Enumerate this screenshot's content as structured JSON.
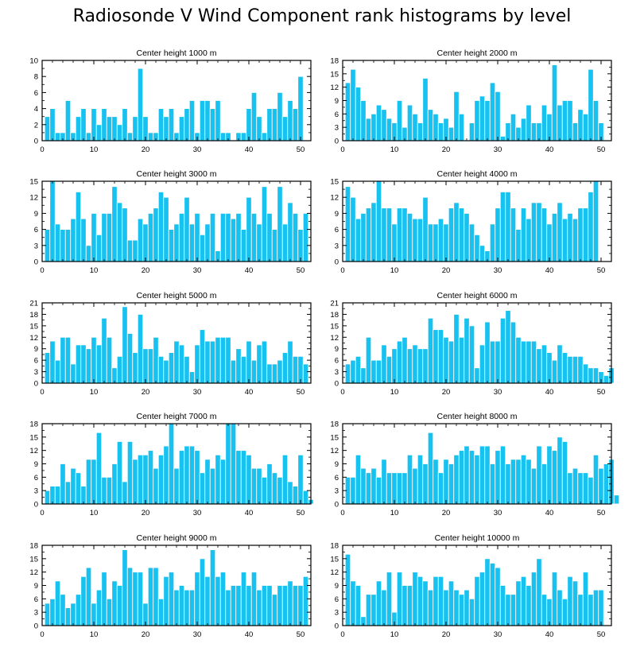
{
  "figure_title": "Radiosonde V Wind Component rank histograms by level",
  "colors": {
    "bar": "#18c2f0",
    "bar_edge": "#ffffff",
    "axis": "#000000"
  },
  "chart_data": [
    {
      "type": "bar",
      "title": "Center height 1000 m",
      "xlabel": "",
      "ylabel": "",
      "xlim": [
        0,
        52
      ],
      "ylim": [
        0,
        10
      ],
      "yticks": [
        0,
        2,
        4,
        6,
        8,
        10
      ],
      "xticks": [
        0,
        10,
        20,
        30,
        40,
        50
      ],
      "grid": false,
      "values": [
        3,
        4,
        1,
        1,
        5,
        1,
        3,
        4,
        1,
        4,
        2,
        4,
        3,
        3,
        2,
        4,
        1,
        3,
        9,
        3,
        1,
        1,
        4,
        3,
        4,
        1,
        3,
        4,
        5,
        1,
        5,
        5,
        4,
        5,
        1,
        1,
        0,
        1,
        1,
        4,
        6,
        3,
        1,
        4,
        4,
        6,
        3,
        5,
        4,
        8
      ]
    },
    {
      "type": "bar",
      "title": "Center height 2000 m",
      "xlabel": "",
      "ylabel": "",
      "xlim": [
        0,
        52
      ],
      "ylim": [
        0,
        18
      ],
      "yticks": [
        0,
        3,
        6,
        9,
        12,
        15,
        18
      ],
      "xticks": [
        0,
        10,
        20,
        30,
        40,
        50
      ],
      "grid": false,
      "values": [
        13,
        16,
        12,
        9,
        5,
        6,
        8,
        7,
        5,
        4,
        9,
        3,
        8,
        6,
        4,
        14,
        7,
        6,
        4,
        5,
        3,
        11,
        6,
        0,
        4,
        9,
        10,
        9,
        13,
        11,
        1,
        4,
        6,
        3,
        5,
        8,
        4,
        4,
        8,
        6,
        17,
        8,
        9,
        9,
        4,
        7,
        6,
        16,
        9,
        4
      ]
    },
    {
      "type": "bar",
      "title": "Center height 3000 m",
      "xlabel": "",
      "ylabel": "",
      "xlim": [
        0,
        52
      ],
      "ylim": [
        0,
        15
      ],
      "yticks": [
        0,
        3,
        6,
        9,
        12,
        15
      ],
      "xticks": [
        0,
        10,
        20,
        30,
        40,
        50
      ],
      "grid": false,
      "values": [
        6,
        15,
        7,
        6,
        6,
        8,
        13,
        8,
        3,
        9,
        5,
        9,
        9,
        14,
        11,
        10,
        4,
        4,
        8,
        7,
        9,
        10,
        13,
        12,
        6,
        7,
        9,
        12,
        7,
        9,
        5,
        7,
        9,
        2,
        9,
        9,
        8,
        9,
        6,
        12,
        9,
        7,
        14,
        9,
        6,
        14,
        7,
        11,
        9,
        6,
        9
      ]
    },
    {
      "type": "bar",
      "title": "Center height 4000 m",
      "xlabel": "",
      "ylabel": "",
      "xlim": [
        0,
        52
      ],
      "ylim": [
        0,
        15
      ],
      "yticks": [
        0,
        3,
        6,
        9,
        12,
        15
      ],
      "xticks": [
        0,
        10,
        20,
        30,
        40,
        50
      ],
      "grid": false,
      "values": [
        14,
        12,
        8,
        9,
        10,
        11,
        15,
        10,
        10,
        7,
        10,
        10,
        9,
        8,
        8,
        12,
        7,
        7,
        8,
        7,
        10,
        11,
        10,
        9,
        7,
        5,
        3,
        2,
        7,
        10,
        13,
        13,
        10,
        6,
        10,
        8,
        11,
        11,
        10,
        7,
        9,
        11,
        8,
        9,
        8,
        10,
        10,
        13,
        15
      ]
    },
    {
      "type": "bar",
      "title": "Center height 5000 m",
      "xlabel": "",
      "ylabel": "",
      "xlim": [
        0,
        52
      ],
      "ylim": [
        0,
        21
      ],
      "yticks": [
        0,
        3,
        6,
        9,
        12,
        15,
        18,
        21
      ],
      "xticks": [
        0,
        10,
        20,
        30,
        40,
        50
      ],
      "grid": false,
      "values": [
        8,
        11,
        6,
        12,
        12,
        5,
        10,
        10,
        9,
        12,
        10,
        17,
        12,
        4,
        7,
        20,
        13,
        8,
        18,
        9,
        9,
        12,
        7,
        6,
        8,
        11,
        10,
        7,
        3,
        10,
        14,
        11,
        11,
        12,
        12,
        12,
        6,
        9,
        7,
        11,
        6,
        10,
        11,
        5,
        5,
        6,
        8,
        11,
        7,
        7,
        5
      ]
    },
    {
      "type": "bar",
      "title": "Center height 6000 m",
      "xlabel": "",
      "ylabel": "",
      "xlim": [
        0,
        52
      ],
      "ylim": [
        0,
        21
      ],
      "yticks": [
        0,
        3,
        6,
        9,
        12,
        15,
        18,
        21
      ],
      "xticks": [
        0,
        10,
        20,
        30,
        40,
        50
      ],
      "grid": false,
      "values": [
        5,
        6,
        7,
        4,
        12,
        6,
        6,
        10,
        7,
        9,
        11,
        12,
        9,
        10,
        9,
        9,
        17,
        14,
        14,
        12,
        11,
        18,
        12,
        17,
        15,
        4,
        10,
        16,
        11,
        11,
        17,
        19,
        16,
        12,
        11,
        11,
        11,
        9,
        10,
        8,
        6,
        10,
        8,
        7,
        7,
        7,
        5,
        4,
        4,
        3,
        2,
        4
      ]
    },
    {
      "type": "bar",
      "title": "Center height 7000 m",
      "xlabel": "",
      "ylabel": "",
      "xlim": [
        0,
        52
      ],
      "ylim": [
        0,
        18
      ],
      "yticks": [
        0,
        3,
        6,
        9,
        12,
        15,
        18
      ],
      "xticks": [
        0,
        10,
        20,
        30,
        40,
        50
      ],
      "grid": false,
      "values": [
        3,
        4,
        4,
        9,
        5,
        8,
        7,
        4,
        10,
        10,
        16,
        6,
        6,
        9,
        14,
        5,
        14,
        10,
        11,
        11,
        12,
        8,
        11,
        13,
        18,
        8,
        12,
        13,
        13,
        12,
        7,
        10,
        8,
        11,
        10,
        18,
        18,
        12,
        12,
        11,
        8,
        8,
        6,
        9,
        7,
        6,
        11,
        5,
        4,
        11,
        3,
        1
      ]
    },
    {
      "type": "bar",
      "title": "Center height 8000 m",
      "xlabel": "",
      "ylabel": "",
      "xlim": [
        0,
        52
      ],
      "ylim": [
        0,
        18
      ],
      "yticks": [
        0,
        3,
        6,
        9,
        12,
        15,
        18
      ],
      "xticks": [
        0,
        10,
        20,
        30,
        40,
        50
      ],
      "grid": false,
      "values": [
        6,
        6,
        11,
        8,
        7,
        8,
        6,
        10,
        7,
        7,
        7,
        7,
        11,
        8,
        11,
        9,
        16,
        10,
        7,
        10,
        9,
        11,
        12,
        13,
        12,
        11,
        13,
        13,
        9,
        12,
        13,
        9,
        10,
        10,
        11,
        10,
        8,
        13,
        9,
        13,
        12,
        15,
        14,
        7,
        8,
        7,
        7,
        6,
        11,
        8,
        9,
        10,
        2
      ]
    },
    {
      "type": "bar",
      "title": "Center height 9000 m",
      "xlabel": "",
      "ylabel": "",
      "xlim": [
        0,
        52
      ],
      "ylim": [
        0,
        18
      ],
      "yticks": [
        0,
        3,
        6,
        9,
        12,
        15,
        18
      ],
      "xticks": [
        0,
        10,
        20,
        30,
        40,
        50
      ],
      "grid": false,
      "values": [
        5,
        6,
        10,
        7,
        4,
        5,
        7,
        11,
        13,
        5,
        8,
        12,
        6,
        10,
        9,
        17,
        13,
        12,
        12,
        5,
        13,
        13,
        6,
        11,
        12,
        8,
        9,
        8,
        8,
        12,
        15,
        11,
        17,
        11,
        12,
        8,
        9,
        9,
        12,
        9,
        12,
        8,
        9,
        9,
        7,
        9,
        9,
        10,
        9,
        9,
        11
      ]
    },
    {
      "type": "bar",
      "title": "Center height 10000 m",
      "xlabel": "",
      "ylabel": "",
      "xlim": [
        0,
        52
      ],
      "ylim": [
        0,
        18
      ],
      "yticks": [
        0,
        3,
        6,
        9,
        12,
        15,
        18
      ],
      "xticks": [
        0,
        10,
        20,
        30,
        40,
        50
      ],
      "grid": false,
      "values": [
        16,
        10,
        9,
        2,
        7,
        7,
        10,
        8,
        12,
        3,
        12,
        9,
        9,
        12,
        11,
        10,
        8,
        11,
        11,
        8,
        10,
        8,
        7,
        8,
        6,
        11,
        12,
        15,
        14,
        13,
        9,
        7,
        7,
        10,
        11,
        9,
        12,
        15,
        7,
        6,
        12,
        8,
        6,
        11,
        10,
        7,
        12,
        7,
        8,
        8
      ]
    }
  ]
}
